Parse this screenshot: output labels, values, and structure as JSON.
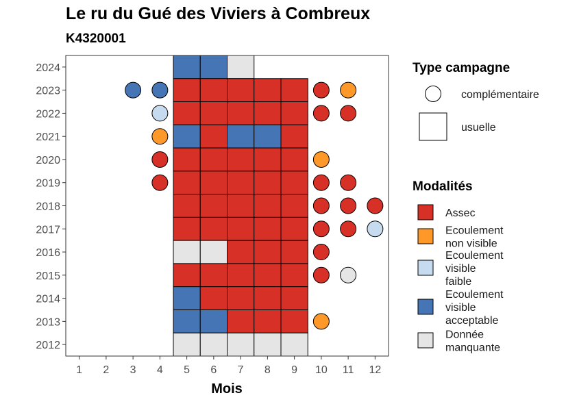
{
  "header": {
    "title": "Le ru du Gué des Viviers à Combreux",
    "subtitle": "K4320001"
  },
  "chart_data": {
    "type": "heatmap",
    "title": "Le ru du Gué des Viviers à Combreux",
    "subtitle": "K4320001",
    "xlabel": "Mois",
    "ylabel": "",
    "x_ticks": [
      1,
      2,
      3,
      4,
      5,
      6,
      7,
      8,
      9,
      10,
      11,
      12
    ],
    "y_ticks": [
      2012,
      2013,
      2014,
      2015,
      2016,
      2017,
      2018,
      2019,
      2020,
      2021,
      2022,
      2023,
      2024
    ],
    "xlim": [
      0.5,
      12.5
    ],
    "ylim": [
      2011.5,
      2024.5
    ],
    "grid": false,
    "legend_placement": "right",
    "campaign_legend": {
      "title": "Type campagne",
      "items": [
        {
          "key": "complementaire",
          "label": "complémentaire",
          "shape": "circle"
        },
        {
          "key": "usuelle",
          "label": "usuelle",
          "shape": "square"
        }
      ]
    },
    "modality_legend": {
      "title": "Modalités",
      "items": [
        {
          "key": "assec",
          "lines": [
            "Assec"
          ],
          "color": "#d73027"
        },
        {
          "key": "ecoulement_non_visible",
          "lines": [
            "Ecoulement",
            "non visible"
          ],
          "color": "#fe9929"
        },
        {
          "key": "ecoulement_visible_faible",
          "lines": [
            "Ecoulement",
            "visible",
            "faible"
          ],
          "color": "#c6dbef"
        },
        {
          "key": "ecoulement_visible_acceptable",
          "lines": [
            "Ecoulement",
            "visible",
            "acceptable"
          ],
          "color": "#4575b4"
        },
        {
          "key": "donnee_manquante",
          "lines": [
            "Donnée",
            "manquante"
          ],
          "color": "#e5e5e5"
        }
      ]
    },
    "usuelle": [
      {
        "year": 2024,
        "months": {
          "5": "ecoulement_visible_acceptable",
          "6": "ecoulement_visible_acceptable",
          "7": "donnee_manquante"
        }
      },
      {
        "year": 2023,
        "months": {
          "5": "assec",
          "6": "assec",
          "7": "assec",
          "8": "assec",
          "9": "assec"
        }
      },
      {
        "year": 2022,
        "months": {
          "5": "assec",
          "6": "assec",
          "7": "assec",
          "8": "assec",
          "9": "assec"
        }
      },
      {
        "year": 2021,
        "months": {
          "5": "ecoulement_visible_acceptable",
          "6": "assec",
          "7": "ecoulement_visible_acceptable",
          "8": "ecoulement_visible_acceptable",
          "9": "assec"
        }
      },
      {
        "year": 2020,
        "months": {
          "5": "assec",
          "6": "assec",
          "7": "assec",
          "8": "assec",
          "9": "assec"
        }
      },
      {
        "year": 2019,
        "months": {
          "5": "assec",
          "6": "assec",
          "7": "assec",
          "8": "assec",
          "9": "assec"
        }
      },
      {
        "year": 2018,
        "months": {
          "5": "assec",
          "6": "assec",
          "7": "assec",
          "8": "assec",
          "9": "assec"
        }
      },
      {
        "year": 2017,
        "months": {
          "5": "assec",
          "6": "assec",
          "7": "assec",
          "8": "assec",
          "9": "assec"
        }
      },
      {
        "year": 2016,
        "months": {
          "5": "donnee_manquante",
          "6": "donnee_manquante",
          "7": "assec",
          "8": "assec",
          "9": "assec"
        }
      },
      {
        "year": 2015,
        "months": {
          "5": "assec",
          "6": "assec",
          "7": "assec",
          "8": "assec",
          "9": "assec"
        }
      },
      {
        "year": 2014,
        "months": {
          "5": "ecoulement_visible_acceptable",
          "6": "assec",
          "7": "assec",
          "8": "assec",
          "9": "assec"
        }
      },
      {
        "year": 2013,
        "months": {
          "5": "ecoulement_visible_acceptable",
          "6": "ecoulement_visible_acceptable",
          "7": "assec",
          "8": "assec",
          "9": "assec"
        }
      },
      {
        "year": 2012,
        "months": {
          "5": "donnee_manquante",
          "6": "donnee_manquante",
          "7": "donnee_manquante",
          "8": "donnee_manquante",
          "9": "donnee_manquante"
        }
      }
    ],
    "complementaire": [
      {
        "year": 2023,
        "months": {
          "3": "ecoulement_visible_acceptable",
          "4": "ecoulement_visible_acceptable",
          "10": "assec",
          "11": "ecoulement_non_visible"
        }
      },
      {
        "year": 2022,
        "months": {
          "4": "ecoulement_visible_faible",
          "10": "assec",
          "11": "assec"
        }
      },
      {
        "year": 2021,
        "months": {
          "4": "ecoulement_non_visible"
        }
      },
      {
        "year": 2020,
        "months": {
          "4": "assec",
          "10": "ecoulement_non_visible"
        }
      },
      {
        "year": 2019,
        "months": {
          "4": "assec",
          "10": "assec",
          "11": "assec"
        }
      },
      {
        "year": 2018,
        "months": {
          "10": "assec",
          "11": "assec",
          "12": "assec"
        }
      },
      {
        "year": 2017,
        "months": {
          "10": "assec",
          "11": "assec",
          "12": "ecoulement_visible_faible"
        }
      },
      {
        "year": 2016,
        "months": {
          "10": "assec"
        }
      },
      {
        "year": 2015,
        "months": {
          "10": "assec",
          "11": "donnee_manquante"
        }
      },
      {
        "year": 2013,
        "months": {
          "10": "ecoulement_non_visible"
        }
      }
    ]
  }
}
